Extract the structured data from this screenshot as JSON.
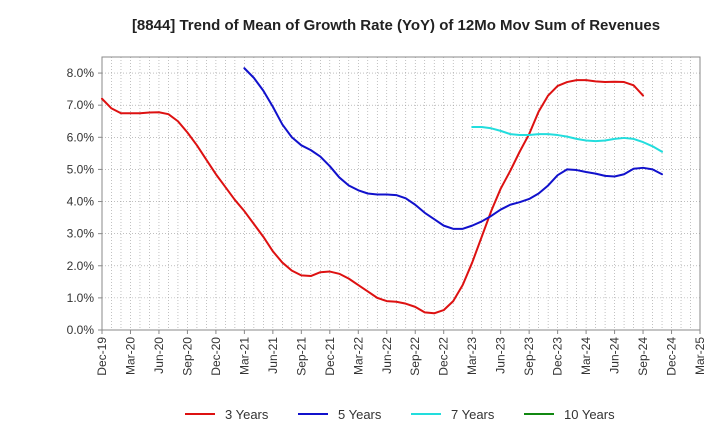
{
  "chart_data": {
    "type": "line",
    "title": "[8844]  Trend of Mean of Growth Rate (YoY) of 12Mo Mov Sum of Revenues",
    "xlabel": "",
    "ylabel": "",
    "ylim": [
      0,
      8.5
    ],
    "y_ticks": [
      0,
      1,
      2,
      3,
      4,
      5,
      6,
      7,
      8
    ],
    "y_tick_labels": [
      "0.0%",
      "1.0%",
      "2.0%",
      "3.0%",
      "4.0%",
      "5.0%",
      "6.0%",
      "7.0%",
      "8.0%"
    ],
    "x_start": "Dec-19",
    "n_months": 63,
    "x_tick_labels": [
      "Dec-19",
      "Mar-20",
      "Jun-20",
      "Sep-20",
      "Dec-20",
      "Mar-21",
      "Jun-21",
      "Sep-21",
      "Dec-21",
      "Mar-22",
      "Jun-22",
      "Sep-22",
      "Dec-22",
      "Mar-23",
      "Jun-23",
      "Sep-23",
      "Dec-23",
      "Mar-24",
      "Jun-24",
      "Sep-24",
      "Dec-24",
      "Mar-25"
    ],
    "grid": true,
    "legend_position": "bottom",
    "series": [
      {
        "name": "3 Years",
        "color": "#dd1111",
        "start_index": 0,
        "values": [
          7.2,
          6.9,
          6.75,
          6.75,
          6.75,
          6.77,
          6.78,
          6.72,
          6.5,
          6.15,
          5.75,
          5.3,
          4.85,
          4.45,
          4.05,
          3.7,
          3.3,
          2.9,
          2.45,
          2.1,
          1.85,
          1.7,
          1.68,
          1.8,
          1.82,
          1.75,
          1.6,
          1.4,
          1.2,
          1.0,
          0.9,
          0.88,
          0.82,
          0.72,
          0.55,
          0.52,
          0.62,
          0.9,
          1.4,
          2.1,
          2.9,
          3.7,
          4.4,
          4.95,
          5.55,
          6.1,
          6.8,
          7.3,
          7.6,
          7.72,
          7.78,
          7.78,
          7.74,
          7.72,
          7.73,
          7.72,
          7.62,
          7.3
        ]
      },
      {
        "name": "5 Years",
        "color": "#1111cc",
        "start_index": 15,
        "values": [
          8.15,
          7.85,
          7.45,
          6.95,
          6.4,
          6.0,
          5.75,
          5.6,
          5.4,
          5.1,
          4.75,
          4.5,
          4.35,
          4.25,
          4.22,
          4.22,
          4.2,
          4.1,
          3.9,
          3.65,
          3.45,
          3.25,
          3.15,
          3.15,
          3.25,
          3.38,
          3.55,
          3.75,
          3.9,
          3.98,
          4.08,
          4.25,
          4.5,
          4.82,
          5.0,
          4.98,
          4.92,
          4.87,
          4.8,
          4.78,
          4.85,
          5.02,
          5.05,
          5.0,
          4.85
        ]
      },
      {
        "name": "7 Years",
        "color": "#22dddd",
        "start_index": 39,
        "values": [
          6.32,
          6.32,
          6.28,
          6.2,
          6.1,
          6.07,
          6.07,
          6.1,
          6.1,
          6.07,
          6.02,
          5.95,
          5.9,
          5.88,
          5.9,
          5.95,
          5.98,
          5.95,
          5.85,
          5.72,
          5.55
        ]
      },
      {
        "name": "10 Years",
        "color": "#118811",
        "start_index": 0,
        "values": []
      }
    ]
  }
}
